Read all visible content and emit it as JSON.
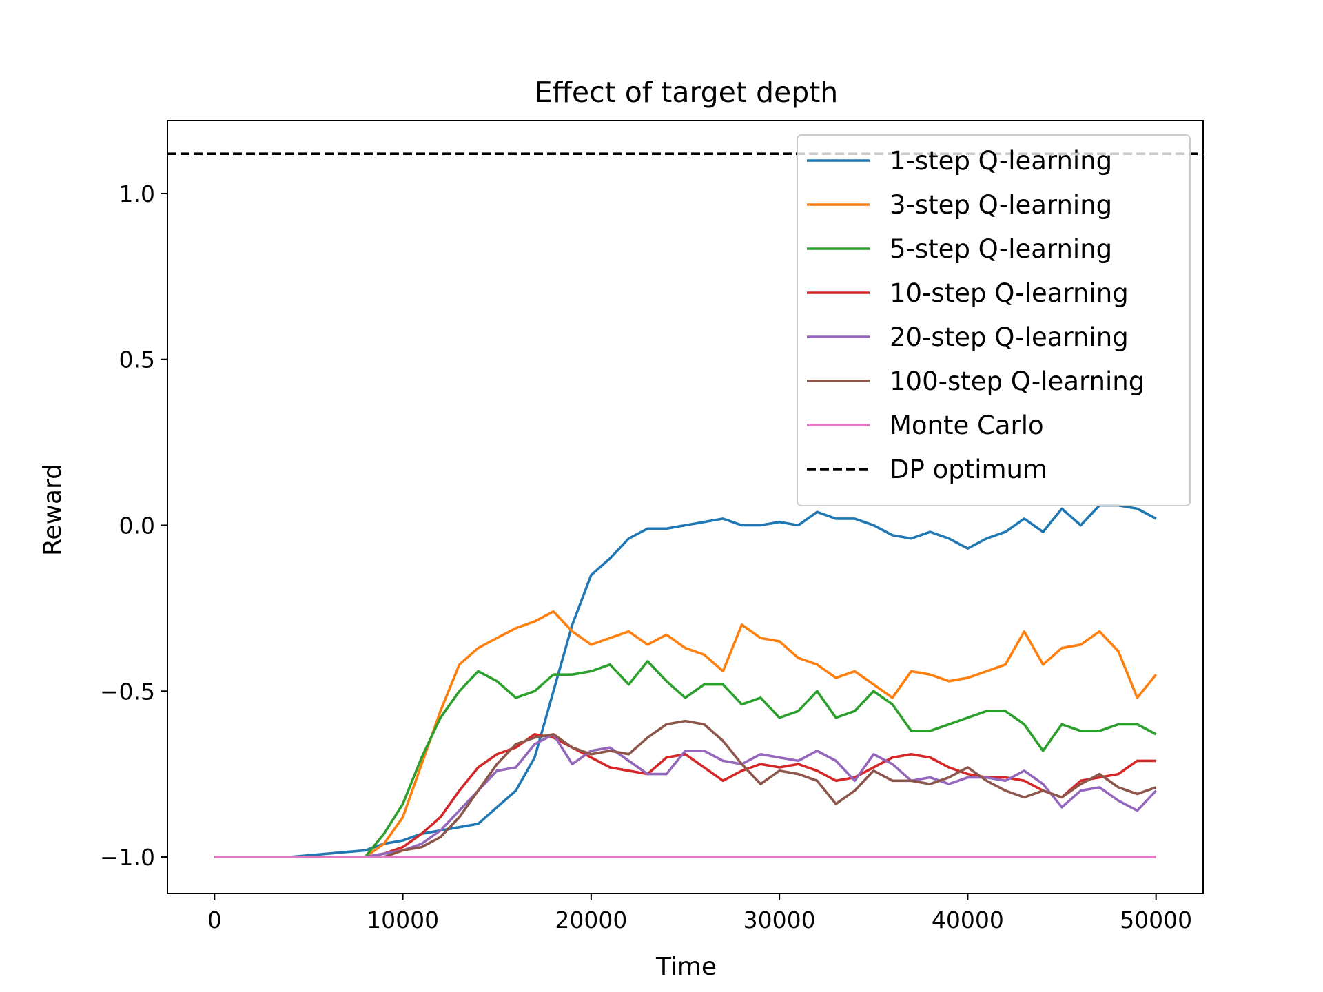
{
  "chart_data": {
    "type": "line",
    "title": "Effect of target depth",
    "xlabel": "Time",
    "ylabel": "Reward",
    "xlim": [
      -2500,
      52500
    ],
    "ylim": [
      -1.11,
      1.22
    ],
    "xticks": [
      0,
      10000,
      20000,
      30000,
      40000,
      50000
    ],
    "xtick_labels": [
      "0",
      "10000",
      "20000",
      "30000",
      "40000",
      "50000"
    ],
    "yticks": [
      -1.0,
      -0.5,
      0.0,
      0.5,
      1.0
    ],
    "ytick_labels": [
      "−1.0",
      "−0.5",
      "0.0",
      "0.5",
      "1.0"
    ],
    "grid": false,
    "legend_position": "top-right",
    "x": [
      0,
      2000,
      4000,
      6000,
      8000,
      9000,
      10000,
      11000,
      12000,
      13000,
      14000,
      15000,
      16000,
      17000,
      18000,
      19000,
      20000,
      21000,
      22000,
      23000,
      24000,
      25000,
      26000,
      27000,
      28000,
      29000,
      30000,
      31000,
      32000,
      33000,
      34000,
      35000,
      36000,
      37000,
      38000,
      39000,
      40000,
      41000,
      42000,
      43000,
      44000,
      45000,
      46000,
      47000,
      48000,
      49000,
      50000
    ],
    "series": [
      {
        "name": "1-step Q-learning",
        "color": "#1f77b4",
        "dashed": false,
        "values": [
          -1.0,
          -1.0,
          -1.0,
          -0.99,
          -0.98,
          -0.96,
          -0.95,
          -0.93,
          -0.92,
          -0.91,
          -0.9,
          -0.85,
          -0.8,
          -0.7,
          -0.5,
          -0.3,
          -0.15,
          -0.1,
          -0.04,
          -0.01,
          -0.01,
          0.0,
          0.01,
          0.02,
          0.0,
          0.0,
          0.01,
          0.0,
          0.04,
          0.02,
          0.02,
          0.0,
          -0.03,
          -0.04,
          -0.02,
          -0.04,
          -0.07,
          -0.04,
          -0.02,
          0.02,
          -0.02,
          0.05,
          0.0,
          0.06,
          0.06,
          0.05,
          0.02
        ]
      },
      {
        "name": "3-step Q-learning",
        "color": "#ff7f0e",
        "dashed": false,
        "values": [
          -1.0,
          -1.0,
          -1.0,
          -1.0,
          -1.0,
          -0.96,
          -0.88,
          -0.72,
          -0.56,
          -0.42,
          -0.37,
          -0.34,
          -0.31,
          -0.29,
          -0.26,
          -0.32,
          -0.36,
          -0.34,
          -0.32,
          -0.36,
          -0.33,
          -0.37,
          -0.39,
          -0.44,
          -0.3,
          -0.34,
          -0.35,
          -0.4,
          -0.42,
          -0.46,
          -0.44,
          -0.48,
          -0.52,
          -0.44,
          -0.45,
          -0.47,
          -0.46,
          -0.44,
          -0.42,
          -0.32,
          -0.42,
          -0.37,
          -0.36,
          -0.32,
          -0.38,
          -0.52,
          -0.45
        ]
      },
      {
        "name": "5-step Q-learning",
        "color": "#2ca02c",
        "dashed": false,
        "values": [
          -1.0,
          -1.0,
          -1.0,
          -1.0,
          -1.0,
          -0.93,
          -0.84,
          -0.7,
          -0.58,
          -0.5,
          -0.44,
          -0.47,
          -0.52,
          -0.5,
          -0.45,
          -0.45,
          -0.44,
          -0.42,
          -0.48,
          -0.41,
          -0.47,
          -0.52,
          -0.48,
          -0.48,
          -0.54,
          -0.52,
          -0.58,
          -0.56,
          -0.5,
          -0.58,
          -0.56,
          -0.5,
          -0.54,
          -0.62,
          -0.62,
          -0.6,
          -0.58,
          -0.56,
          -0.56,
          -0.6,
          -0.68,
          -0.6,
          -0.62,
          -0.62,
          -0.6,
          -0.6,
          -0.63
        ]
      },
      {
        "name": "10-step Q-learning",
        "color": "#d62728",
        "dashed": false,
        "values": [
          -1.0,
          -1.0,
          -1.0,
          -1.0,
          -1.0,
          -0.99,
          -0.97,
          -0.93,
          -0.88,
          -0.8,
          -0.73,
          -0.69,
          -0.67,
          -0.63,
          -0.64,
          -0.67,
          -0.7,
          -0.73,
          -0.74,
          -0.75,
          -0.7,
          -0.69,
          -0.73,
          -0.77,
          -0.74,
          -0.72,
          -0.73,
          -0.72,
          -0.74,
          -0.77,
          -0.76,
          -0.73,
          -0.7,
          -0.69,
          -0.7,
          -0.73,
          -0.75,
          -0.76,
          -0.76,
          -0.77,
          -0.8,
          -0.82,
          -0.77,
          -0.76,
          -0.75,
          -0.71,
          -0.71
        ]
      },
      {
        "name": "20-step Q-learning",
        "color": "#9467bd",
        "dashed": false,
        "values": [
          -1.0,
          -1.0,
          -1.0,
          -1.0,
          -1.0,
          -0.99,
          -0.98,
          -0.96,
          -0.92,
          -0.86,
          -0.8,
          -0.74,
          -0.73,
          -0.66,
          -0.63,
          -0.72,
          -0.68,
          -0.67,
          -0.71,
          -0.75,
          -0.75,
          -0.68,
          -0.68,
          -0.71,
          -0.72,
          -0.69,
          -0.7,
          -0.71,
          -0.68,
          -0.71,
          -0.77,
          -0.69,
          -0.72,
          -0.77,
          -0.76,
          -0.78,
          -0.76,
          -0.76,
          -0.77,
          -0.74,
          -0.78,
          -0.85,
          -0.8,
          -0.79,
          -0.83,
          -0.86,
          -0.8
        ]
      },
      {
        "name": "100-step Q-learning",
        "color": "#8c564b",
        "dashed": false,
        "values": [
          -1.0,
          -1.0,
          -1.0,
          -1.0,
          -1.0,
          -1.0,
          -0.98,
          -0.97,
          -0.94,
          -0.88,
          -0.8,
          -0.72,
          -0.66,
          -0.64,
          -0.63,
          -0.67,
          -0.69,
          -0.68,
          -0.69,
          -0.64,
          -0.6,
          -0.59,
          -0.6,
          -0.65,
          -0.72,
          -0.78,
          -0.74,
          -0.75,
          -0.77,
          -0.84,
          -0.8,
          -0.74,
          -0.77,
          -0.77,
          -0.78,
          -0.76,
          -0.73,
          -0.77,
          -0.8,
          -0.82,
          -0.8,
          -0.82,
          -0.78,
          -0.75,
          -0.79,
          -0.81,
          -0.79
        ]
      },
      {
        "name": "Monte Carlo",
        "color": "#e377c2",
        "dashed": false,
        "values": [
          -1.0,
          -1.0,
          -1.0,
          -1.0,
          -1.0,
          -1.0,
          -1.0,
          -1.0,
          -1.0,
          -1.0,
          -1.0,
          -1.0,
          -1.0,
          -1.0,
          -1.0,
          -1.0,
          -1.0,
          -1.0,
          -1.0,
          -1.0,
          -1.0,
          -1.0,
          -1.0,
          -1.0,
          -1.0,
          -1.0,
          -1.0,
          -1.0,
          -1.0,
          -1.0,
          -1.0,
          -1.0,
          -1.0,
          -1.0,
          -1.0,
          -1.0,
          -1.0,
          -1.0,
          -1.0,
          -1.0,
          -1.0,
          -1.0,
          -1.0,
          -1.0,
          -1.0,
          -1.0,
          -1.0
        ]
      },
      {
        "name": "DP optimum",
        "color": "#000000",
        "dashed": true,
        "hline": 1.12
      }
    ]
  }
}
